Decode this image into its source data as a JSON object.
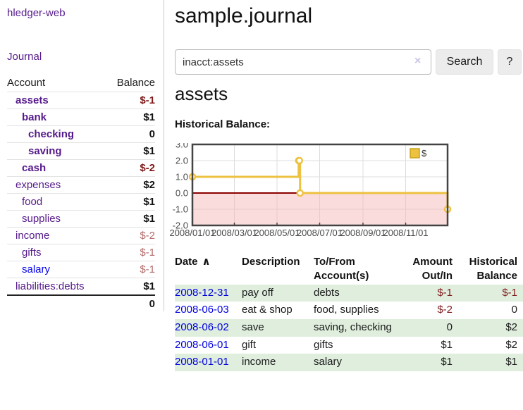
{
  "app": {
    "title": "hledger-web"
  },
  "sidebar": {
    "journal_link": "Journal",
    "accounts": {
      "col_account": "Account",
      "col_balance": "Balance",
      "rows": [
        {
          "name": "assets",
          "indent": 1,
          "bold": true,
          "link": "purple",
          "balance": "$-1",
          "balance_class": "bal-negS"
        },
        {
          "name": "bank",
          "indent": 2,
          "bold": true,
          "link": "purple",
          "balance": "$1",
          "balance_class": "bal-pos"
        },
        {
          "name": "checking",
          "indent": 3,
          "bold": true,
          "link": "purple",
          "balance": "0",
          "balance_class": "bal-pos"
        },
        {
          "name": "saving",
          "indent": 3,
          "bold": true,
          "link": "purple",
          "balance": "$1",
          "balance_class": "bal-pos"
        },
        {
          "name": "cash",
          "indent": 2,
          "bold": true,
          "link": "purple",
          "balance": "$-2",
          "balance_class": "bal-negS"
        },
        {
          "name": "expenses",
          "indent": 1,
          "bold": false,
          "link": "purple",
          "balance": "$2",
          "balance_class": "bal-pos"
        },
        {
          "name": "food",
          "indent": 2,
          "bold": false,
          "link": "purple",
          "balance": "$1",
          "balance_class": "bal-pos"
        },
        {
          "name": "supplies",
          "indent": 2,
          "bold": false,
          "link": "purple",
          "balance": "$1",
          "balance_class": "bal-pos"
        },
        {
          "name": "income",
          "indent": 1,
          "bold": false,
          "link": "purple",
          "balance": "$-2",
          "balance_class": "bal-negL"
        },
        {
          "name": "gifts",
          "indent": 2,
          "bold": false,
          "link": "purple",
          "balance": "$-1",
          "balance_class": "bal-negL"
        },
        {
          "name": "salary",
          "indent": 2,
          "bold": false,
          "link": "blue",
          "balance": "$-1",
          "balance_class": "bal-negL"
        },
        {
          "name": "liabilities:debts",
          "indent": 1,
          "bold": false,
          "link": "purple",
          "balance": "$1",
          "balance_class": "bal-pos"
        }
      ],
      "total": "0"
    }
  },
  "main": {
    "page_title": "sample.journal",
    "search": {
      "value": "inacct:assets",
      "clear_icon": "×",
      "button": "Search",
      "help": "?"
    },
    "account_heading": "assets",
    "chart_label": "Historical Balance:"
  },
  "chart_data": {
    "type": "line",
    "step": true,
    "title": "Historical Balance:",
    "x": [
      "2008-01-01",
      "2008-06-01",
      "2008-06-02",
      "2008-06-03",
      "2008-12-31"
    ],
    "series": [
      {
        "name": "$",
        "values": [
          1,
          2,
          2,
          0,
          -1
        ]
      }
    ],
    "xlim": [
      "2008-01-01",
      "2008-12-31"
    ],
    "ylim": [
      -2,
      3
    ],
    "yticks": [
      "3.0",
      "2.0",
      "1.0",
      "0.0",
      "-1.0",
      "-2.0"
    ],
    "ytick_values": [
      3,
      2,
      1,
      0,
      -1,
      -2
    ],
    "xticks": [
      "2008/01/01",
      "2008/03/01",
      "2008/05/01",
      "2008/07/01",
      "2008/09/01",
      "2008/11/01"
    ],
    "grid": true,
    "legend_position": "top-right",
    "legend": [
      {
        "label": "$",
        "color": "#edc240"
      }
    ],
    "colors": {
      "line": "#edc240",
      "marker_fill": "#ffffff",
      "negative_region": "#f7b5b5",
      "zero_line": "#8b0000",
      "grid": "#dcdcdc",
      "border": "#434343",
      "tick_text": "#4a4a4a",
      "legend_border": "#c9a21f"
    }
  },
  "register": {
    "headers": {
      "date": "Date",
      "sort_icon": "∧",
      "description": "Description",
      "accounts_line1": "To/From",
      "accounts_line2": "Account(s)",
      "amount_line1": "Amount",
      "amount_line2": "Out/In",
      "balance_line1": "Historical",
      "balance_line2": "Balance"
    },
    "rows": [
      {
        "date": "2008-12-31",
        "description": "pay off",
        "accounts": "debts",
        "amount": "$-1",
        "amount_negative": true,
        "balance": "$-1",
        "balance_negative": true
      },
      {
        "date": "2008-06-03",
        "description": "eat & shop",
        "accounts": "food, supplies",
        "amount": "$-2",
        "amount_negative": true,
        "balance": "0",
        "balance_negative": false
      },
      {
        "date": "2008-06-02",
        "description": "save",
        "accounts": "saving, checking",
        "amount": "0",
        "amount_negative": false,
        "balance": "$2",
        "balance_negative": false
      },
      {
        "date": "2008-06-01",
        "description": "gift",
        "accounts": "gifts",
        "amount": "$1",
        "amount_negative": false,
        "balance": "$2",
        "balance_negative": false
      },
      {
        "date": "2008-01-01",
        "description": "income",
        "accounts": "salary",
        "amount": "$1",
        "amount_negative": false,
        "balance": "$1",
        "balance_negative": false
      }
    ]
  }
}
